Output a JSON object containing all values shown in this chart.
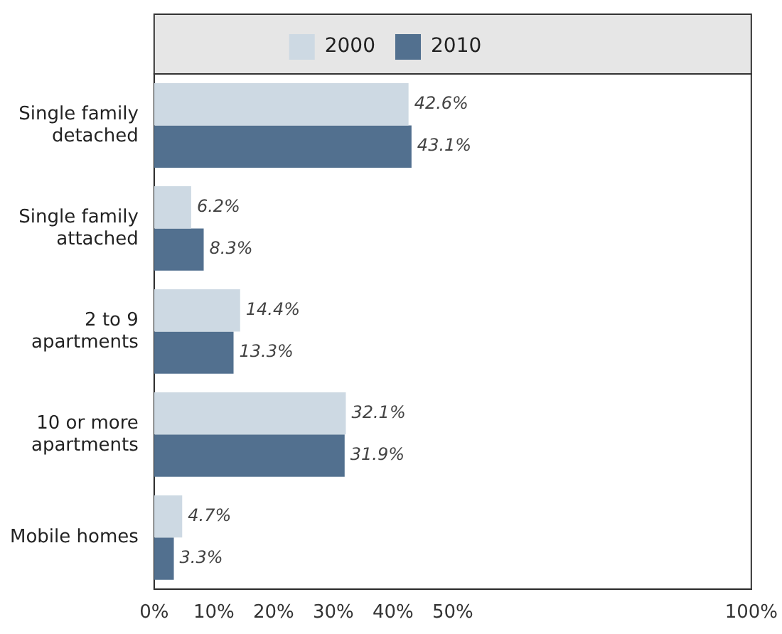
{
  "chart_data": {
    "type": "bar",
    "orientation": "horizontal",
    "categories": [
      "Single family detached",
      "Single family attached",
      "2 to 9 apartments",
      "10 or more apartments",
      "Mobile homes"
    ],
    "series": [
      {
        "name": "2000",
        "color": "#cdd9e3",
        "values": [
          42.6,
          6.2,
          14.4,
          32.1,
          4.7
        ],
        "value_labels": [
          "42.6%",
          "6.2%",
          "14.4%",
          "32.1%",
          "4.7%"
        ]
      },
      {
        "name": "2010",
        "color": "#52708f",
        "values": [
          43.1,
          8.3,
          13.3,
          31.9,
          3.3
        ],
        "value_labels": [
          "43.1%",
          "8.3%",
          "13.3%",
          "31.9%",
          "3.3%"
        ]
      }
    ],
    "xlim": [
      0,
      100
    ],
    "xticks": [
      {
        "value": 0,
        "label": "0%"
      },
      {
        "value": 10,
        "label": "10%"
      },
      {
        "value": 20,
        "label": "20%"
      },
      {
        "value": 30,
        "label": "30%"
      },
      {
        "value": 40,
        "label": "40%"
      },
      {
        "value": 50,
        "label": "50%"
      },
      {
        "value": 100,
        "label": "100%"
      }
    ],
    "grid": false,
    "legend": "top"
  }
}
